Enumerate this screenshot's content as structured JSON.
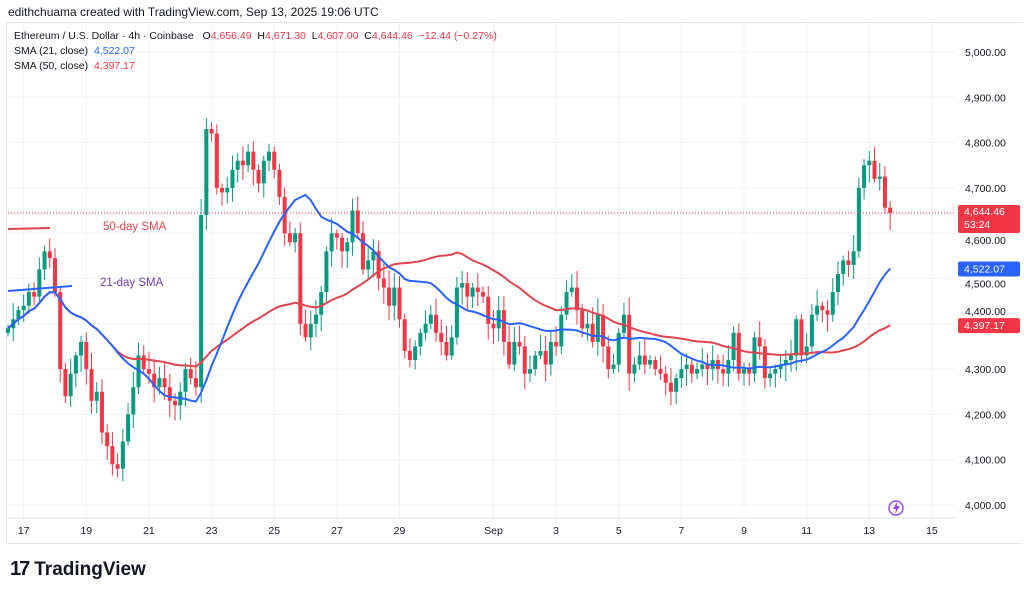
{
  "credit": "edithchuama created with TradingView.com, Sep 13, 2025 19:06 UTC",
  "legend": {
    "symbol": "Ethereum / U.S. Dollar · 4h · Coinbase",
    "o_label": "O",
    "o": "4,656.49",
    "h_label": "H",
    "h": "4,671.30",
    "l_label": "L",
    "l": "4,607.00",
    "c_label": "C",
    "c": "4,644.46",
    "change": "−12.44 (−0.27%)",
    "sma21_label": "SMA (21, close)",
    "sma21": "4,522.07",
    "sma50_label": "SMA (50, close)",
    "sma50": "4,397.17"
  },
  "annotations": {
    "sma50": "50-day SMA",
    "sma21": "21-day SMA"
  },
  "price_labels": {
    "last": "4,644.46",
    "countdown": "53:24",
    "sma21": "4,522.07",
    "sma50": "4,397.17"
  },
  "brand": "TradingView",
  "colors": {
    "up": "#089981",
    "down": "#f23645",
    "sma21": "#2962ff",
    "sma50": "#e0454f",
    "grid": "#f0f3fa",
    "annot21": "#6a3fa0"
  },
  "chart_data": {
    "type": "candlestick",
    "title": "Ethereum / U.S. Dollar · 4h · Coinbase",
    "ylim": [
      3950,
      5050
    ],
    "y_ticks": [
      "5,000.00",
      "4,900.00",
      "4,800.00",
      "4,700.00",
      "4,600.00",
      "4,500.00",
      "4,400.00",
      "4,300.00",
      "4,200.00",
      "4,100.00",
      "4,000.00"
    ],
    "y_tick_values": [
      5000,
      4900,
      4800,
      4700,
      4600,
      4500,
      4400,
      4300,
      4200,
      4100,
      4000
    ],
    "x_ticks": [
      "17",
      "19",
      "21",
      "23",
      "25",
      "27",
      "29",
      "Sep",
      "3",
      "5",
      "7",
      "9",
      "11",
      "13",
      "15"
    ],
    "x_tick_candle_index": [
      3,
      15,
      27,
      39,
      51,
      63,
      75,
      93,
      105,
      117,
      129,
      141,
      153,
      165,
      177
    ],
    "first_open": 4380,
    "closes": [
      4390,
      4410,
      4430,
      4440,
      4470,
      4460,
      4520,
      4560,
      4545,
      4470,
      4300,
      4240,
      4290,
      4330,
      4360,
      4300,
      4230,
      4250,
      4160,
      4130,
      4090,
      4080,
      4140,
      4200,
      4260,
      4330,
      4300,
      4290,
      4260,
      4280,
      4260,
      4230,
      4220,
      4250,
      4300,
      4280,
      4260,
      4640,
      4830,
      4820,
      4700,
      4690,
      4700,
      4740,
      4760,
      4750,
      4780,
      4740,
      4710,
      4760,
      4780,
      4740,
      4680,
      4600,
      4580,
      4600,
      4400,
      4370,
      4400,
      4420,
      4470,
      4560,
      4600,
      4590,
      4560,
      4580,
      4650,
      4600,
      4520,
      4540,
      4560,
      4500,
      4480,
      4440,
      4480,
      4410,
      4340,
      4320,
      4350,
      4380,
      4400,
      4420,
      4380,
      4360,
      4330,
      4370,
      4480,
      4490,
      4460,
      4480,
      4470,
      4460,
      4400,
      4390,
      4430,
      4360,
      4310,
      4360,
      4350,
      4290,
      4300,
      4330,
      4340,
      4310,
      4360,
      4350,
      4420,
      4470,
      4480,
      4430,
      4390,
      4400,
      4360,
      4420,
      4350,
      4300,
      4310,
      4380,
      4420,
      4290,
      4310,
      4330,
      4310,
      4320,
      4300,
      4290,
      4270,
      4250,
      4280,
      4300,
      4310,
      4290,
      4300,
      4310,
      4300,
      4320,
      4300,
      4290,
      4320,
      4380,
      4290,
      4300,
      4290,
      4370,
      4350,
      4280,
      4290,
      4300,
      4310,
      4320,
      4330,
      4410,
      4330,
      4350,
      4420,
      4440,
      4430,
      4420,
      4470,
      4510,
      4540,
      4530,
      4560,
      4700,
      4750,
      4760,
      4720,
      4725,
      4656.49,
      4644.46
    ],
    "last": {
      "open": 4656.49,
      "high": 4671.3,
      "low": 4607.0,
      "close": 4644.46
    },
    "series": [
      {
        "name": "SMA (21, close)",
        "last": 4522.07
      },
      {
        "name": "SMA (50, close)",
        "last": 4397.17
      }
    ]
  }
}
